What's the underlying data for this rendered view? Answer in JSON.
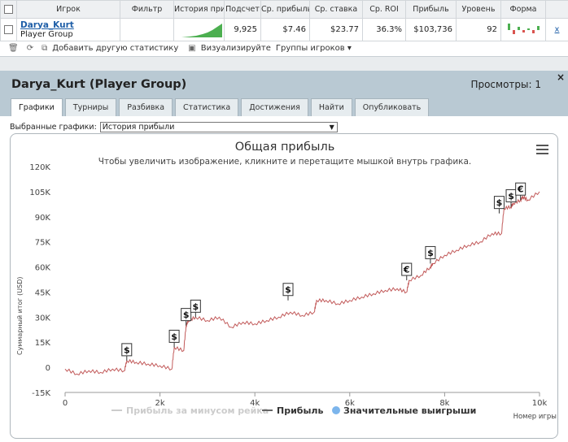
{
  "table": {
    "headers": [
      "",
      "Игрок",
      "Фильтр",
      "История при",
      "Подсчет",
      "Ср. прибыль",
      "Ср. ставка",
      "Ср. ROI",
      "Прибыль",
      "Уровень",
      "Форма",
      ""
    ],
    "row": {
      "player_name": "Darya_Kurt",
      "player_group": "Player Group",
      "count": "9,925",
      "avg_profit": "$7.46",
      "avg_stake": "$23.77",
      "avg_roi": "36.3%",
      "profit": "$103,736",
      "level": "92",
      "close": "x"
    }
  },
  "toolbar": {
    "add_stats": "Добавить другую статистику",
    "visualize": "Визуализируйте",
    "player_groups": "Группы игроков"
  },
  "panel": {
    "title": "Darya_Kurt (Player Group)",
    "views": "Просмотры: 1",
    "close": "×",
    "tabs": [
      "Графики",
      "Турниры",
      "Разбивка",
      "Статистика",
      "Достижения",
      "Найти",
      "Опубликовать"
    ],
    "active_tab": "Графики",
    "select_label": "Выбранные графики:",
    "select_value": "История прибыли"
  },
  "chart_data": {
    "type": "line",
    "title": "Общая прибыль",
    "subtitle": "Чтобы увеличить изображение, кликните и перетащите мышкой внутрь графика.",
    "xlabel": "Номер игры",
    "ylabel": "Суммарный итог (USD)",
    "xlim": [
      0,
      10000
    ],
    "ylim": [
      -15000,
      120000
    ],
    "x_ticks": [
      "0",
      "2k",
      "4k",
      "6k",
      "8k",
      "10k"
    ],
    "y_ticks": [
      "-15K",
      "0",
      "15K",
      "30K",
      "45K",
      "60K",
      "75K",
      "90K",
      "105K",
      "120K"
    ],
    "grid": false,
    "series": [
      {
        "name": "Прибыль",
        "color": "#c25a5a",
        "x": [
          0,
          250,
          500,
          750,
          1000,
          1250,
          1300,
          1500,
          1750,
          2000,
          2250,
          2300,
          2500,
          2550,
          2600,
          2750,
          3000,
          3250,
          3500,
          3750,
          4000,
          4250,
          4500,
          4750,
          5000,
          5250,
          5300,
          5500,
          5750,
          6000,
          6250,
          6500,
          6750,
          7000,
          7200,
          7250,
          7500,
          7700,
          7750,
          8000,
          8250,
          8500,
          8750,
          9000,
          9200,
          9250,
          9400,
          9450,
          9600,
          9650,
          9750,
          10000
        ],
        "y": [
          -1000,
          -4000,
          -2000,
          -3000,
          -1000,
          -2000,
          4000,
          3000,
          2000,
          1000,
          -1000,
          12000,
          10000,
          25000,
          28000,
          30000,
          28000,
          30000,
          24000,
          27000,
          26000,
          28000,
          30000,
          33000,
          31000,
          33000,
          40000,
          40000,
          38000,
          40000,
          42000,
          44000,
          46000,
          47000,
          45000,
          52000,
          55000,
          60000,
          62000,
          67000,
          70000,
          73000,
          75000,
          80000,
          80000,
          95000,
          96000,
          98000,
          100000,
          102000,
          100000,
          105000
        ]
      }
    ],
    "significant_wins": [
      {
        "x": 1300,
        "y": 4000,
        "label": "$"
      },
      {
        "x": 2300,
        "y": 12000,
        "label": "$"
      },
      {
        "x": 2550,
        "y": 25000,
        "label": "$"
      },
      {
        "x": 2750,
        "y": 30000,
        "label": "$"
      },
      {
        "x": 4700,
        "y": 40000,
        "label": "$"
      },
      {
        "x": 7200,
        "y": 52000,
        "label": "€"
      },
      {
        "x": 7700,
        "y": 62000,
        "label": "$"
      },
      {
        "x": 9150,
        "y": 92000,
        "label": "$"
      },
      {
        "x": 9400,
        "y": 96000,
        "label": "$"
      },
      {
        "x": 9600,
        "y": 100000,
        "label": "€"
      }
    ],
    "legend": [
      {
        "label": "Прибыль за минусом рейка",
        "color": "#cccccc"
      },
      {
        "label": "Прибыль",
        "color": "#666666"
      },
      {
        "label": "Значительные выигрыши",
        "color": "#7cb5ec"
      }
    ],
    "legend_position": "bottom"
  }
}
